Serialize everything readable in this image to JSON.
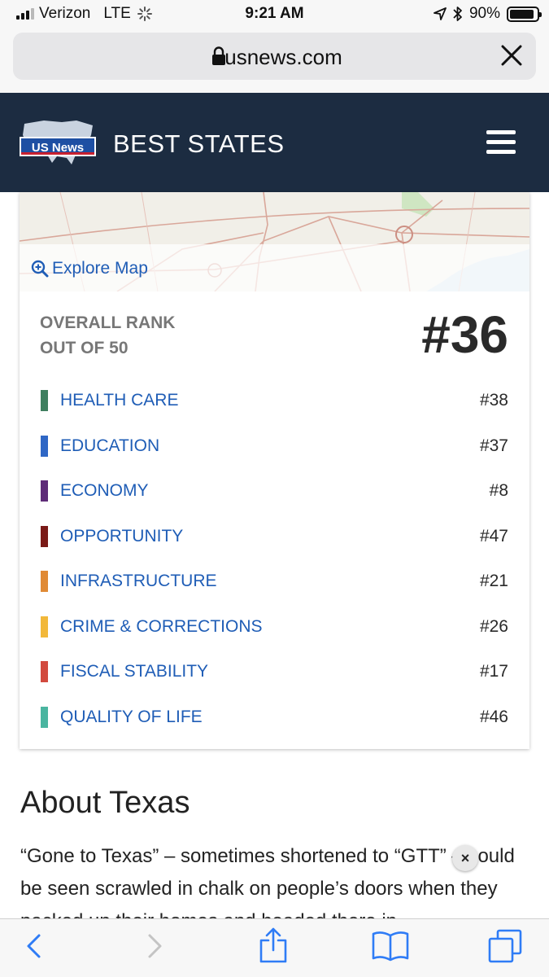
{
  "status_bar": {
    "carrier": "Verizon",
    "network": "LTE",
    "time": "9:21 AM",
    "battery": "90%",
    "battery_level": 0.9
  },
  "browser": {
    "url_host": "usnews.com",
    "icons": [
      "lock-icon",
      "close-icon",
      "back-icon",
      "forward-icon",
      "share-icon",
      "bookmarks-icon",
      "tabs-icon"
    ]
  },
  "site": {
    "logo_text": "US News",
    "section_title": "BEST STATES"
  },
  "map": {
    "explore_label": "Explore Map"
  },
  "ranking": {
    "label_line1": "OVERALL RANK",
    "label_line2": "OUT OF 50",
    "overall": "#36",
    "categories": [
      {
        "name": "HEALTH CARE",
        "rank": "#38",
        "color": "#3f7f5f"
      },
      {
        "name": "EDUCATION",
        "rank": "#37",
        "color": "#2f67c5"
      },
      {
        "name": "ECONOMY",
        "rank": "#8",
        "color": "#5e2c78"
      },
      {
        "name": "OPPORTUNITY",
        "rank": "#47",
        "color": "#7a1a17"
      },
      {
        "name": "INFRASTRUCTURE",
        "rank": "#21",
        "color": "#e08a35"
      },
      {
        "name": "CRIME & CORRECTIONS",
        "rank": "#26",
        "color": "#f2b83a"
      },
      {
        "name": "FISCAL STABILITY",
        "rank": "#17",
        "color": "#d24a3e"
      },
      {
        "name": "QUALITY OF LIFE",
        "rank": "#46",
        "color": "#4ab5a0"
      }
    ]
  },
  "about": {
    "title": "About Texas",
    "text": "“Gone to Texas” – sometimes shortened to “GTT” – could be seen scrawled in chalk on people’s doors when they packed up their homes and headed there in",
    "ad_close": "×"
  }
}
